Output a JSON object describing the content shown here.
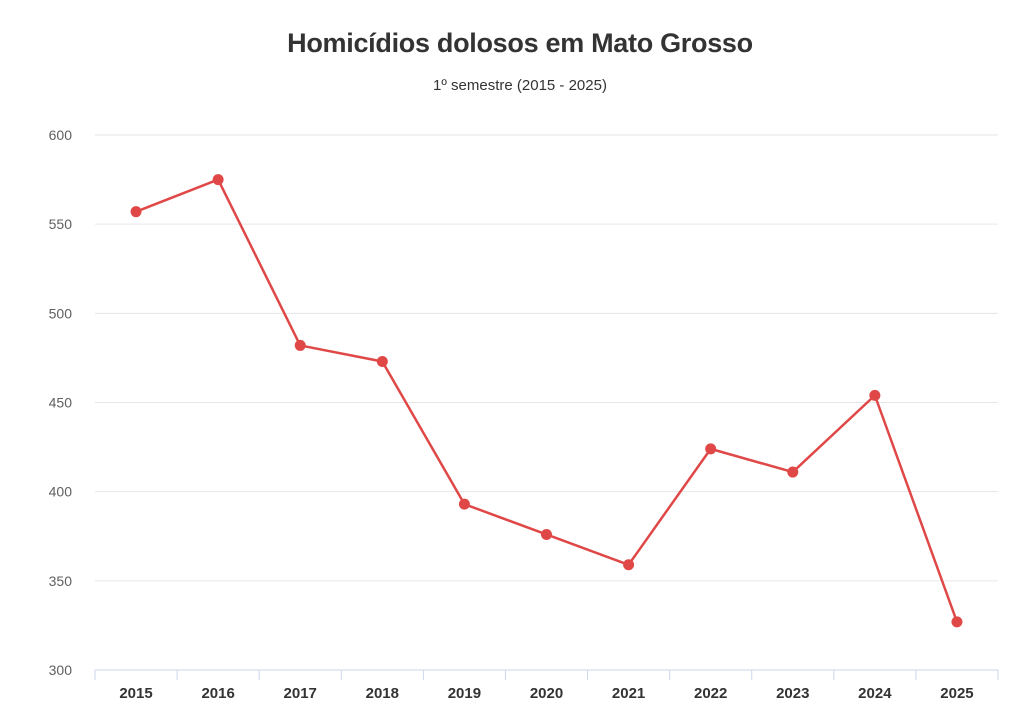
{
  "chart_data": {
    "type": "line",
    "title": "Homicídios dolosos em Mato Grosso",
    "subtitle": "1º semestre (2015 - 2025)",
    "xlabel": "",
    "ylabel": "",
    "categories": [
      "2015",
      "2016",
      "2017",
      "2018",
      "2019",
      "2020",
      "2021",
      "2022",
      "2023",
      "2024",
      "2025"
    ],
    "series": [
      {
        "values": [
          557,
          575,
          482,
          473,
          393,
          376,
          359,
          424,
          411,
          454,
          327
        ]
      }
    ],
    "ylim": [
      300,
      600
    ],
    "yticks": [
      "300",
      "350",
      "400",
      "450",
      "500",
      "550",
      "600"
    ],
    "grid": true,
    "legend": "none",
    "line_color": "#e04848",
    "grid_color": "#e6e6e6",
    "axis_color": "#ccd6eb"
  }
}
